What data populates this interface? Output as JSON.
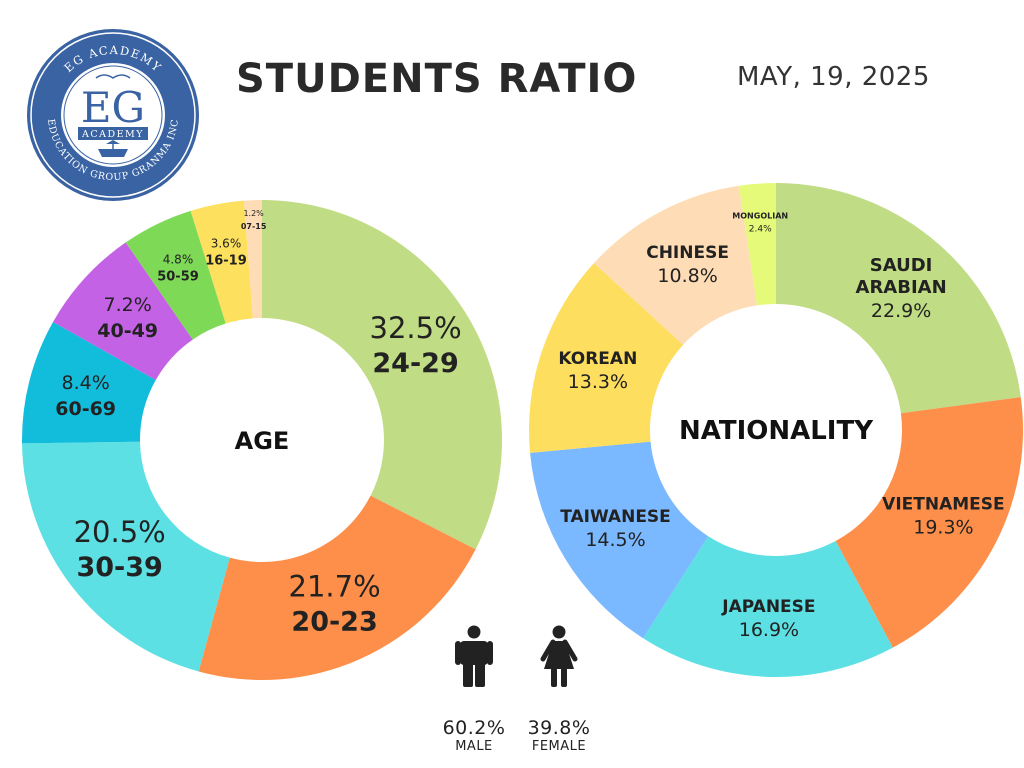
{
  "header": {
    "title": "STUDENTS RATIO",
    "date": "MAY, 19, 2025"
  },
  "logo": {
    "top_arc": "EG ACADEMY",
    "bottom_arc": "EDUCATION GROUP GRANMA INC",
    "mark": "EG",
    "sub": "ACADEMY"
  },
  "chart_data": [
    {
      "type": "pie",
      "center_label": "AGE",
      "slices": [
        {
          "label": "24-29",
          "value": 32.5,
          "text": "32.5%",
          "color": "#c0dc84"
        },
        {
          "label": "20-23",
          "value": 21.7,
          "text": "21.7%",
          "color": "#fd8f4a"
        },
        {
          "label": "30-39",
          "value": 20.5,
          "text": "20.5%",
          "color": "#5ce0e4"
        },
        {
          "label": "60-69",
          "value": 8.4,
          "text": "8.4%",
          "color": "#12bcdb"
        },
        {
          "label": "40-49",
          "value": 7.2,
          "text": "7.2%",
          "color": "#c462e6"
        },
        {
          "label": "50-59",
          "value": 4.8,
          "text": "4.8%",
          "color": "#7ed957"
        },
        {
          "label": "16-19",
          "value": 3.6,
          "text": "3.6%",
          "color": "#fde05e"
        },
        {
          "label": "07-15",
          "value": 1.2,
          "text": "1.2%",
          "color": "#fedcb5"
        }
      ]
    },
    {
      "type": "pie",
      "center_label": "NATIONALITY",
      "slices": [
        {
          "label": "SAUDI ARABIAN",
          "value": 22.9,
          "text": "22.9%",
          "color": "#c0dc84"
        },
        {
          "label": "VIETNAMESE",
          "value": 19.3,
          "text": "19.3%",
          "color": "#fd8f4a"
        },
        {
          "label": "JAPANESE",
          "value": 16.9,
          "text": "16.9%",
          "color": "#5ce0e4"
        },
        {
          "label": "TAIWANESE",
          "value": 14.5,
          "text": "14.5%",
          "color": "#7ab8ff"
        },
        {
          "label": "KOREAN",
          "value": 13.3,
          "text": "13.3%",
          "color": "#fede5f"
        },
        {
          "label": "CHINESE",
          "value": 10.8,
          "text": "10.8%",
          "color": "#fedcb5"
        },
        {
          "label": "MONGOLIAN",
          "value": 2.4,
          "text": "2.4%",
          "color": "#e5fa78"
        }
      ]
    }
  ],
  "gender": {
    "male": {
      "pct": "60.2%",
      "label": "MALE",
      "icon": "male-person-icon"
    },
    "female": {
      "pct": "39.8%",
      "label": "FEMALE",
      "icon": "female-person-icon"
    }
  }
}
